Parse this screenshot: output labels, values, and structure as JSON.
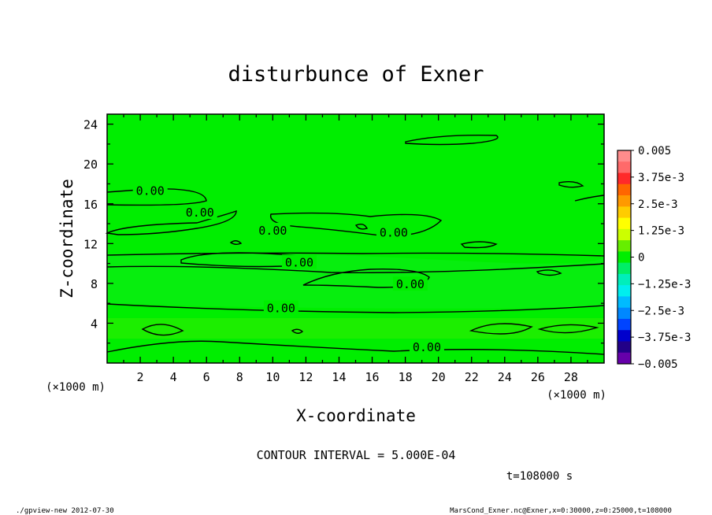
{
  "chart_data": {
    "type": "contour",
    "title": "disturbunce of Exner",
    "xlabel": "X-coordinate",
    "ylabel": "Z-coordinate",
    "x_unit": "(×1000 m)",
    "y_unit": "(×1000 m)",
    "xlim": [
      0,
      30
    ],
    "ylim": [
      0,
      25
    ],
    "x_ticks": [
      "2",
      "4",
      "6",
      "8",
      "10",
      "12",
      "14",
      "16",
      "18",
      "20",
      "22",
      "24",
      "26",
      "28"
    ],
    "y_ticks": [
      "4",
      "8",
      "12",
      "16",
      "20",
      "24"
    ],
    "contour_interval": "CONTOUR INTERVAL = 5.000E-04",
    "time_label": "t=108000 s",
    "contour_labels": [
      {
        "text": "0.00",
        "x": 2.6,
        "z": 17.3
      },
      {
        "text": "0.00",
        "x": 5.6,
        "z": 15.1
      },
      {
        "text": "0.00",
        "x": 10.0,
        "z": 13.3
      },
      {
        "text": "0.00",
        "x": 17.3,
        "z": 13.1
      },
      {
        "text": "0.00",
        "x": 11.6,
        "z": 10.1
      },
      {
        "text": "0.00",
        "x": 18.3,
        "z": 7.9
      },
      {
        "text": "0.00",
        "x": 10.5,
        "z": 5.5
      },
      {
        "text": "0.00",
        "x": 19.3,
        "z": 1.6
      }
    ],
    "colorbar": {
      "levels": [
        "0.005",
        "3.75e-3",
        "2.5e-3",
        "1.25e-3",
        "0",
        "−1.25e-3",
        "−2.5e-3",
        "−3.75e-3",
        "−0.005"
      ],
      "colors": [
        "#ff8c8c",
        "#ff6a6a",
        "#ff2a2a",
        "#ff6600",
        "#ff9900",
        "#ffcc00",
        "#ffff00",
        "#ccff00",
        "#66ee00",
        "#00ee00",
        "#00ee66",
        "#00eebb",
        "#00eeee",
        "#00bbff",
        "#0088ff",
        "#0044ff",
        "#0000cc",
        "#220088",
        "#6600aa"
      ]
    },
    "field_colors": {
      "background": "#00ee00",
      "low_band": "#33ee00",
      "upper": "#22ee00"
    }
  },
  "footer": {
    "left": "./gpview-new   2012-07-30",
    "right": "MarsCond_Exner.nc@Exner,x=0:30000,z=0:25000,t=108000"
  }
}
